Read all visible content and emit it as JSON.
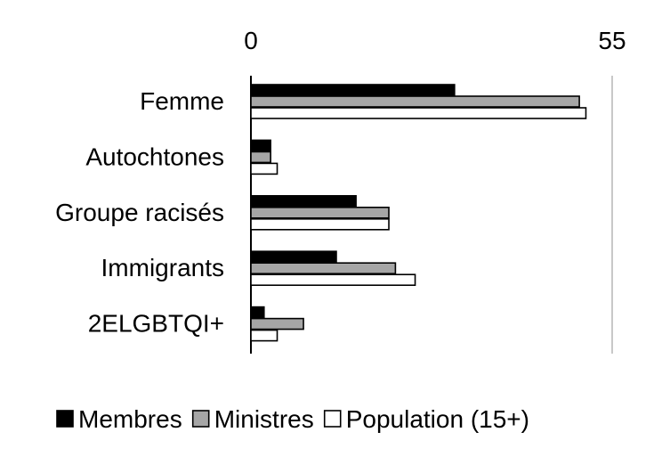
{
  "chart_data": {
    "type": "bar",
    "orientation": "horizontal",
    "categories": [
      "Femme",
      "Autochtones",
      "Groupe racisés",
      "Immigrants",
      "2ELGBTQI+"
    ],
    "series": [
      {
        "name": "Membres",
        "color": "#000000",
        "values": [
          31,
          3,
          16,
          13,
          2
        ]
      },
      {
        "name": "Ministres",
        "color": "#a6a6a6",
        "values": [
          50,
          3,
          21,
          22,
          8
        ]
      },
      {
        "name": "Population (15+)",
        "color": "#ffffff",
        "values": [
          51,
          4,
          21,
          25,
          4
        ]
      }
    ],
    "xlim": [
      0,
      55
    ],
    "xticks": [
      "0",
      "55"
    ],
    "grid": false,
    "legend_position": "bottom"
  }
}
